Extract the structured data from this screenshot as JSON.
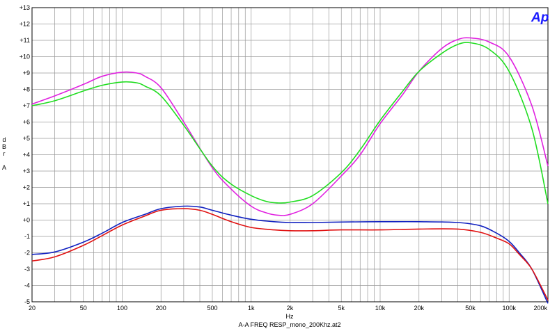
{
  "chart_data": {
    "type": "line",
    "title": "A-A FREQ RESP_mono_200Khz.at2",
    "xlabel": "Hz",
    "ylabel": [
      "d",
      "B",
      "r",
      "",
      "A"
    ],
    "logo": "Ap",
    "xscale": "log",
    "xlim": [
      20,
      200000
    ],
    "ylim": [
      -5,
      13
    ],
    "grid": true,
    "x_ticks": [
      {
        "value": 20,
        "label": "20"
      },
      {
        "value": 50,
        "label": "50"
      },
      {
        "value": 100,
        "label": "100"
      },
      {
        "value": 200,
        "label": "200"
      },
      {
        "value": 500,
        "label": "500"
      },
      {
        "value": 1000,
        "label": "1k"
      },
      {
        "value": 2000,
        "label": "2k"
      },
      {
        "value": 5000,
        "label": "5k"
      },
      {
        "value": 10000,
        "label": "10k"
      },
      {
        "value": 20000,
        "label": "20k"
      },
      {
        "value": 50000,
        "label": "50k"
      },
      {
        "value": 100000,
        "label": "100k"
      },
      {
        "value": 200000,
        "label": "200k"
      }
    ],
    "y_ticks": [
      {
        "value": 13,
        "label": "+13"
      },
      {
        "value": 12,
        "label": "+12"
      },
      {
        "value": 11,
        "label": "+11"
      },
      {
        "value": 10,
        "label": "+10"
      },
      {
        "value": 9,
        "label": "+9"
      },
      {
        "value": 8,
        "label": "+8"
      },
      {
        "value": 7,
        "label": "+7"
      },
      {
        "value": 6,
        "label": "+6"
      },
      {
        "value": 5,
        "label": "+5"
      },
      {
        "value": 4,
        "label": "+4"
      },
      {
        "value": 3,
        "label": "+3"
      },
      {
        "value": 2,
        "label": "+2"
      },
      {
        "value": 1,
        "label": "+1"
      },
      {
        "value": 0,
        "label": "+0"
      },
      {
        "value": -1,
        "label": "-1"
      },
      {
        "value": -2,
        "label": "-2"
      },
      {
        "value": -3,
        "label": "-3"
      },
      {
        "value": -4,
        "label": "-4"
      },
      {
        "value": -5,
        "label": "-5"
      }
    ],
    "series": [
      {
        "color": "#e020e0",
        "x": [
          20,
          30,
          50,
          70,
          100,
          130,
          150,
          200,
          300,
          500,
          700,
          1000,
          1300,
          1600,
          2000,
          3000,
          5000,
          7000,
          10000,
          15000,
          20000,
          30000,
          40000,
          50000,
          70000,
          100000,
          150000,
          200000
        ],
        "y": [
          7.1,
          7.6,
          8.3,
          8.8,
          9.05,
          9.0,
          8.8,
          8.1,
          6.0,
          3.2,
          1.9,
          0.85,
          0.45,
          0.3,
          0.35,
          1.0,
          2.7,
          4.0,
          5.9,
          7.7,
          9.1,
          10.5,
          11.05,
          11.15,
          10.9,
          10.0,
          7.0,
          3.3
        ]
      },
      {
        "color": "#20dd20",
        "x": [
          20,
          30,
          50,
          70,
          100,
          130,
          150,
          200,
          300,
          500,
          700,
          1000,
          1300,
          1600,
          2000,
          3000,
          5000,
          7000,
          10000,
          15000,
          20000,
          30000,
          40000,
          50000,
          70000,
          100000,
          150000,
          200000
        ],
        "y": [
          7.0,
          7.3,
          7.9,
          8.25,
          8.45,
          8.4,
          8.2,
          7.6,
          5.8,
          3.3,
          2.2,
          1.5,
          1.15,
          1.05,
          1.1,
          1.5,
          2.9,
          4.3,
          6.1,
          7.9,
          9.1,
          10.2,
          10.75,
          10.85,
          10.45,
          9.1,
          5.6,
          1.0
        ]
      },
      {
        "color": "#1020c0",
        "x": [
          20,
          30,
          50,
          70,
          100,
          150,
          200,
          300,
          400,
          500,
          700,
          1000,
          1500,
          2000,
          3000,
          5000,
          10000,
          20000,
          40000,
          60000,
          80000,
          100000,
          120000,
          150000,
          200000
        ],
        "y": [
          -2.1,
          -1.95,
          -1.35,
          -0.8,
          -0.15,
          0.35,
          0.7,
          0.85,
          0.8,
          0.6,
          0.3,
          0.05,
          -0.1,
          -0.15,
          -0.15,
          -0.12,
          -0.1,
          -0.1,
          -0.15,
          -0.35,
          -0.8,
          -1.3,
          -2.0,
          -3.0,
          -5.1
        ]
      },
      {
        "color": "#e01010",
        "x": [
          20,
          30,
          50,
          70,
          100,
          150,
          200,
          300,
          400,
          500,
          700,
          1000,
          1500,
          2000,
          3000,
          5000,
          10000,
          20000,
          40000,
          60000,
          80000,
          100000,
          120000,
          150000,
          200000
        ],
        "y": [
          -2.5,
          -2.25,
          -1.55,
          -0.95,
          -0.3,
          0.25,
          0.6,
          0.7,
          0.6,
          0.35,
          -0.1,
          -0.45,
          -0.6,
          -0.65,
          -0.65,
          -0.6,
          -0.6,
          -0.55,
          -0.55,
          -0.75,
          -1.1,
          -1.45,
          -2.1,
          -3.0,
          -4.9
        ]
      }
    ]
  }
}
